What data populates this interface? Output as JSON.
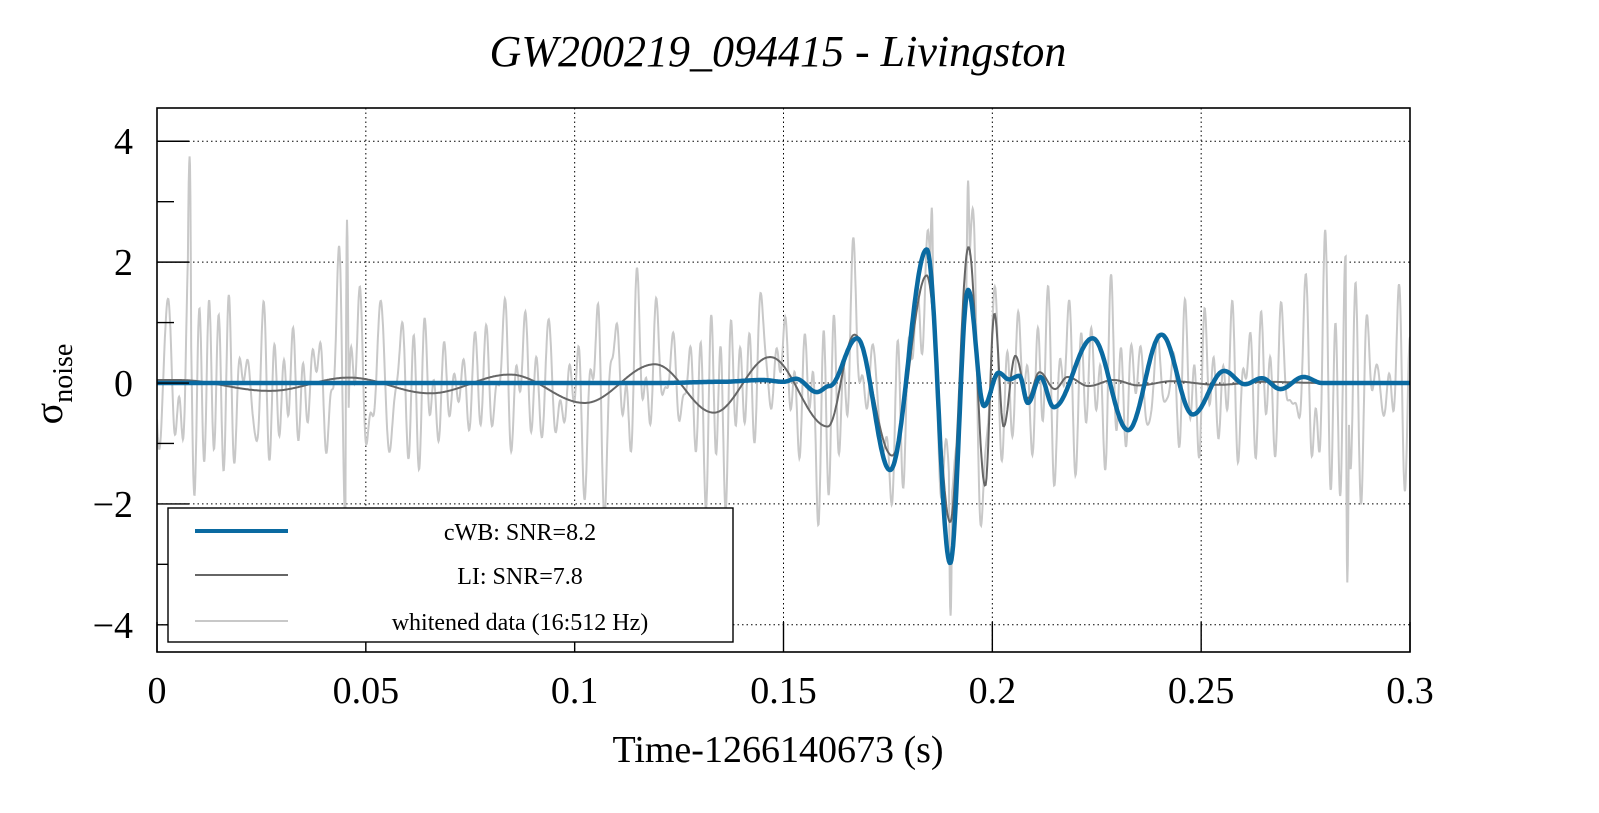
{
  "chart_data": {
    "type": "line",
    "title": "GW200219_094415 - Livingston",
    "xlabel": "Time-1266140673 (s)",
    "ylabel": "σ",
    "ylabel_subscript": "noise",
    "xlim": [
      0,
      0.3
    ],
    "ylim": [
      -4.45,
      4.55
    ],
    "xticks": [
      0,
      0.05,
      0.1,
      0.15,
      0.2,
      0.25,
      0.3
    ],
    "xtick_labels": [
      "0",
      "0.05",
      "0.1",
      "0.15",
      "0.2",
      "0.25",
      "0.3"
    ],
    "yticks": [
      -4,
      -2,
      0,
      2,
      4
    ],
    "ytick_labels": [
      "−4",
      "−2",
      "0",
      "2",
      "4"
    ],
    "grid": true,
    "legend_position": "bottom-left",
    "series": [
      {
        "name": "cWB: SNR=8.2",
        "color": "#0a6aa1",
        "points": [
          [
            0.0,
            0.0
          ],
          [
            0.1,
            0.0
          ],
          [
            0.12,
            0.0
          ],
          [
            0.135,
            0.02
          ],
          [
            0.145,
            0.05
          ],
          [
            0.15,
            0.02
          ],
          [
            0.153,
            0.07
          ],
          [
            0.158,
            -0.15
          ],
          [
            0.161,
            -0.05
          ],
          [
            0.1676,
            0.74
          ],
          [
            0.1755,
            -1.44
          ],
          [
            0.1843,
            2.21
          ],
          [
            0.1899,
            -2.98
          ],
          [
            0.1942,
            1.54
          ],
          [
            0.198,
            -0.38
          ],
          [
            0.2015,
            0.17
          ],
          [
            0.204,
            0.06
          ],
          [
            0.2065,
            0.12
          ],
          [
            0.2085,
            -0.33
          ],
          [
            0.2115,
            0.1
          ],
          [
            0.2147,
            -0.4
          ],
          [
            0.224,
            0.74
          ],
          [
            0.2325,
            -0.78
          ],
          [
            0.2405,
            0.8
          ],
          [
            0.248,
            -0.52
          ],
          [
            0.2555,
            0.2
          ],
          [
            0.2605,
            -0.02
          ],
          [
            0.2645,
            0.08
          ],
          [
            0.269,
            -0.1
          ],
          [
            0.2745,
            0.1
          ],
          [
            0.279,
            0.0
          ],
          [
            0.3,
            0.0
          ]
        ]
      },
      {
        "name": "LI: SNR=7.8",
        "color": "#666666",
        "points": [
          [
            0.0,
            0.05
          ],
          [
            0.005,
            0.05
          ],
          [
            0.027,
            -0.13
          ],
          [
            0.046,
            0.09
          ],
          [
            0.0654,
            -0.17
          ],
          [
            0.0845,
            0.14
          ],
          [
            0.1024,
            -0.33
          ],
          [
            0.1192,
            0.31
          ],
          [
            0.1333,
            -0.49
          ],
          [
            0.1468,
            0.43
          ],
          [
            0.1606,
            -0.72
          ],
          [
            0.167,
            0.8
          ],
          [
            0.176,
            -1.2
          ],
          [
            0.1843,
            1.78
          ],
          [
            0.1899,
            -2.3
          ],
          [
            0.1943,
            2.25
          ],
          [
            0.1983,
            -1.7
          ],
          [
            0.2005,
            1.15
          ],
          [
            0.2027,
            -0.72
          ],
          [
            0.2055,
            0.45
          ],
          [
            0.2085,
            -0.25
          ],
          [
            0.2113,
            0.18
          ],
          [
            0.215,
            -0.1
          ],
          [
            0.218,
            0.1
          ],
          [
            0.223,
            -0.05
          ],
          [
            0.229,
            0.05
          ],
          [
            0.235,
            -0.04
          ],
          [
            0.243,
            0.03
          ],
          [
            0.254,
            -0.03
          ],
          [
            0.265,
            0.02
          ],
          [
            0.28,
            0.0
          ],
          [
            0.3,
            0.0
          ]
        ]
      },
      {
        "name": "whitened data (16:512 Hz)",
        "color": "#c8c8c8",
        "description": "noisy whitened strain, oscillating roughly within ±2.5 with excursions to ~3.8 (t≈0.008), ~3.3 (t≈0.194), and −3.8 (t≈0.190)",
        "notable_extrema": [
          [
            0.0078,
            3.75
          ],
          [
            0.0455,
            2.7
          ],
          [
            0.1855,
            2.9
          ],
          [
            0.1942,
            3.35
          ],
          [
            0.19,
            -3.85
          ],
          [
            0.285,
            -3.3
          ]
        ]
      }
    ]
  }
}
